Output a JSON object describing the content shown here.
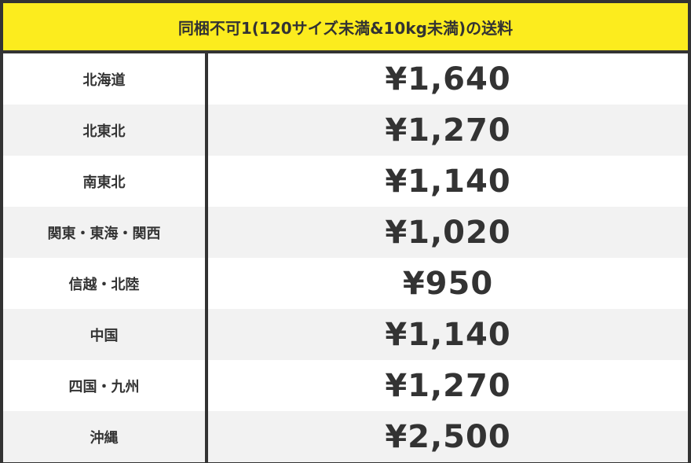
{
  "title": "同梱不可1(120サイズ未満&10kg未満)の送料",
  "colors": {
    "header_bg": "#fcec1e",
    "border": "#333333",
    "row_alt": "#f2f2f2"
  },
  "rows": [
    {
      "region": "北海道",
      "price": "¥1,640"
    },
    {
      "region": "北東北",
      "price": "¥1,270"
    },
    {
      "region": "南東北",
      "price": "¥1,140"
    },
    {
      "region": "関東・東海・関西",
      "price": "¥1,020"
    },
    {
      "region": "信越・北陸",
      "price": "¥950"
    },
    {
      "region": "中国",
      "price": "¥1,140"
    },
    {
      "region": "四国・九州",
      "price": "¥1,270"
    },
    {
      "region": "沖縄",
      "price": "¥2,500"
    }
  ]
}
